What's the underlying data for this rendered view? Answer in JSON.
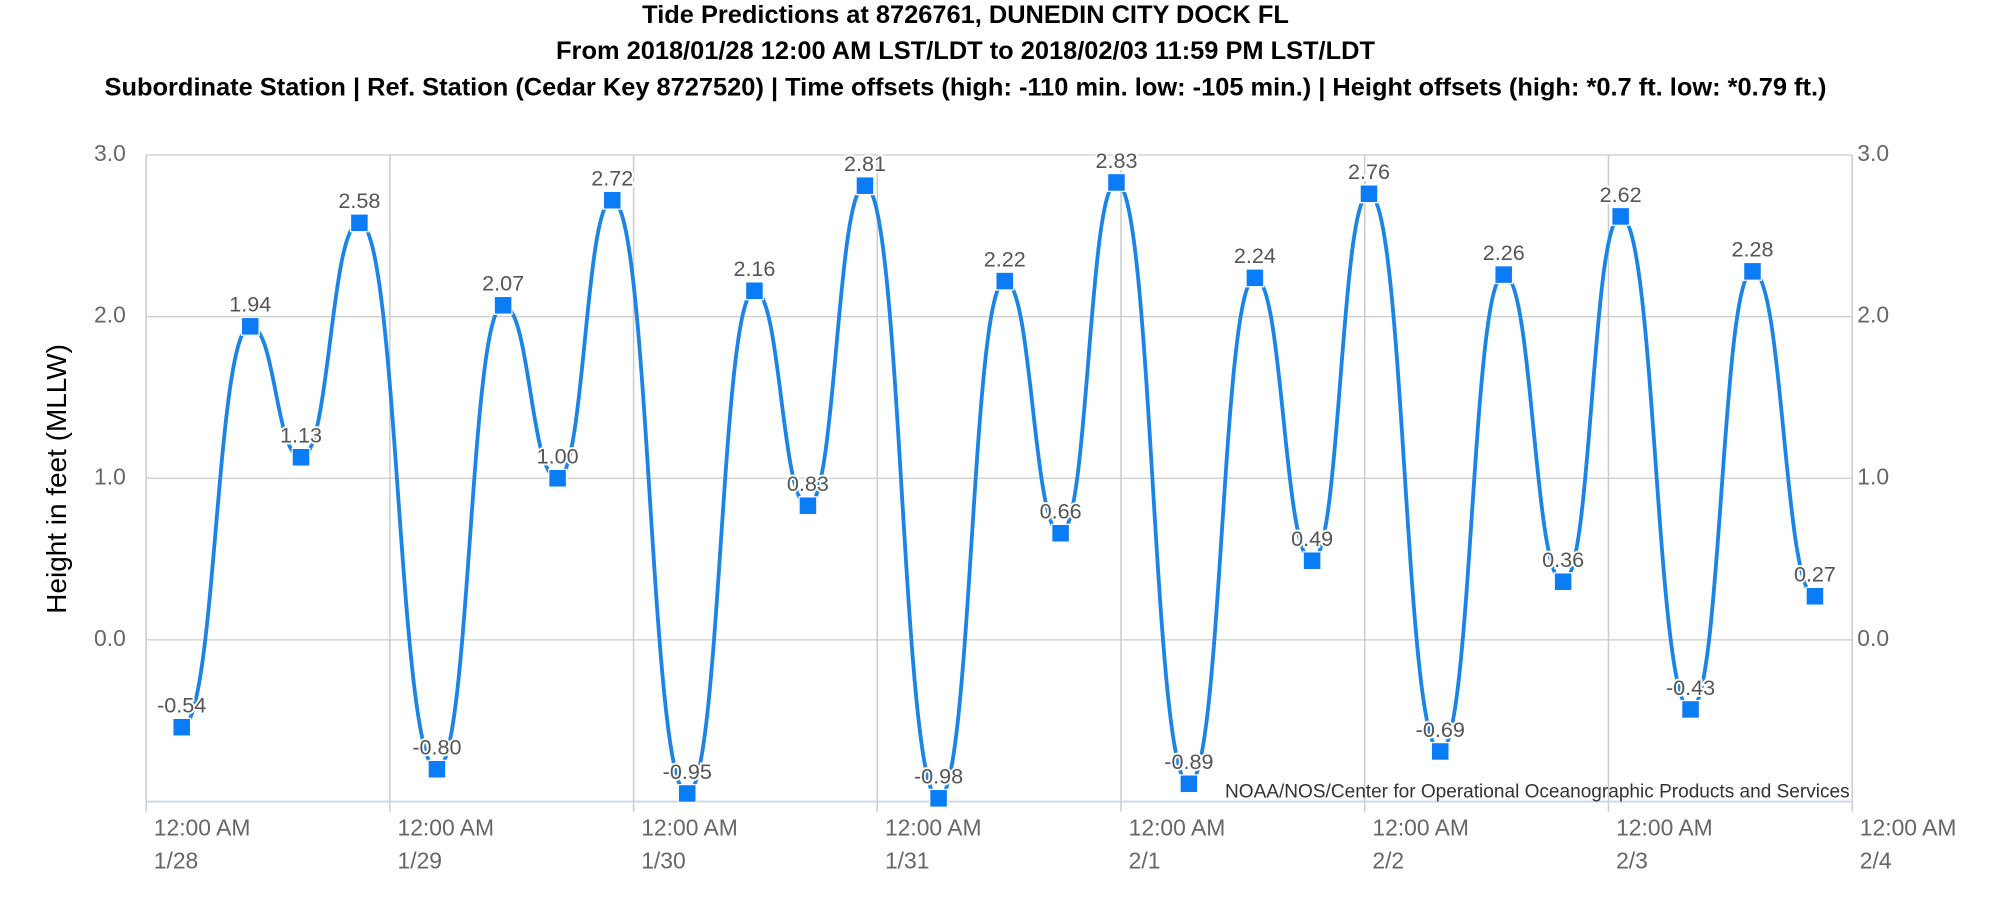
{
  "chart_data": {
    "type": "line",
    "title": "Tide Predictions at 8726761, DUNEDIN CITY DOCK FL",
    "subtitle": "From 2018/01/28 12:00 AM LST/LDT to 2018/02/03 11:59 PM LST/LDT",
    "description": "Subordinate Station | Ref. Station (Cedar Key 8727520) | Time offsets (high: -110 min. low: -105 min.) | Height offsets (high: *0.7 ft. low: *0.79 ft.)",
    "y_label": "Height in feet (MLLW)",
    "credit": "NOAA/NOS/Center for Operational Oceanographic Products and Services",
    "ylim": [
      -1,
      3
    ],
    "yticks": [
      {
        "value": 0,
        "label": "0.0"
      },
      {
        "value": 1,
        "label": "1.0"
      },
      {
        "value": 2,
        "label": "2.0"
      },
      {
        "value": 3,
        "label": "3.0"
      }
    ],
    "y2lim": [
      -1,
      3
    ],
    "y2ticks": [
      {
        "value": 0,
        "label": "0.0"
      },
      {
        "value": 1,
        "label": "1.0"
      },
      {
        "value": 2,
        "label": "2.0"
      },
      {
        "value": 3,
        "label": "3.0"
      }
    ],
    "xlim": [
      "2018-01-28 00:00",
      "2018-02-04 00:00"
    ],
    "xticks": [
      {
        "value": "2018-01-28 00:00",
        "label": "12:00 AM\n1/28"
      },
      {
        "value": "2018-01-29 00:00",
        "label": "12:00 AM\n1/29"
      },
      {
        "value": "2018-01-30 00:00",
        "label": "12:00 AM\n1/30"
      },
      {
        "value": "2018-01-31 00:00",
        "label": "12:00 AM\n1/31"
      },
      {
        "value": "2018-02-01 00:00",
        "label": "12:00 AM\n2/1"
      },
      {
        "value": "2018-02-02 00:00",
        "label": "12:00 AM\n2/2"
      },
      {
        "value": "2018-02-03 00:00",
        "label": "12:00 AM\n2/3"
      },
      {
        "value": "2018-02-04 00:00",
        "label": "12:00 AM\n2/4"
      }
    ],
    "grid": true,
    "x": [
      "2018-01-28 03:30",
      "2018-01-28 10:15",
      "2018-01-28 15:15",
      "2018-01-28 21:00",
      "2018-01-29 04:38",
      "2018-01-29 11:09",
      "2018-01-29 16:31",
      "2018-01-29 21:54",
      "2018-01-30 05:17",
      "2018-01-30 11:54",
      "2018-01-30 17:10",
      "2018-01-30 22:47",
      "2018-01-31 06:02",
      "2018-01-31 12:33",
      "2018-01-31 18:03",
      "2018-01-31 23:33",
      "2018-02-01 06:41",
      "2018-02-01 13:11",
      "2018-02-01 18:49",
      "2018-02-02 00:25",
      "2018-02-02 07:26",
      "2018-02-02 13:41",
      "2018-02-02 19:32",
      "2018-02-03 01:12",
      "2018-02-03 08:05",
      "2018-02-03 14:11",
      "2018-02-03 20:20"
    ],
    "series": [
      {
        "name": "Predictions",
        "color": "#1a85e6",
        "marker_color": "#0a7cf5",
        "values": [
          -0.54,
          1.94,
          1.13,
          2.58,
          -0.8,
          2.07,
          1,
          2.72,
          -0.95,
          2.16,
          0.83,
          2.81,
          -0.98,
          2.22,
          0.66,
          2.83,
          -0.89,
          2.24,
          0.49,
          2.76,
          -0.69,
          2.26,
          0.36,
          2.62,
          -0.43,
          2.28,
          0.27
        ],
        "value_labels": [
          "-0.54",
          "1.94",
          "1.13",
          "2.58",
          "-0.80",
          "2.07",
          "1.00",
          "2.72",
          "-0.95",
          "2.16",
          "0.83",
          "2.81",
          "-0.98",
          "2.22",
          "0.66",
          "2.83",
          "-0.89",
          "2.24",
          "0.49",
          "2.76",
          "-0.69",
          "2.26",
          "0.36",
          "2.62",
          "-0.43",
          "2.28",
          "0.27"
        ]
      }
    ]
  }
}
